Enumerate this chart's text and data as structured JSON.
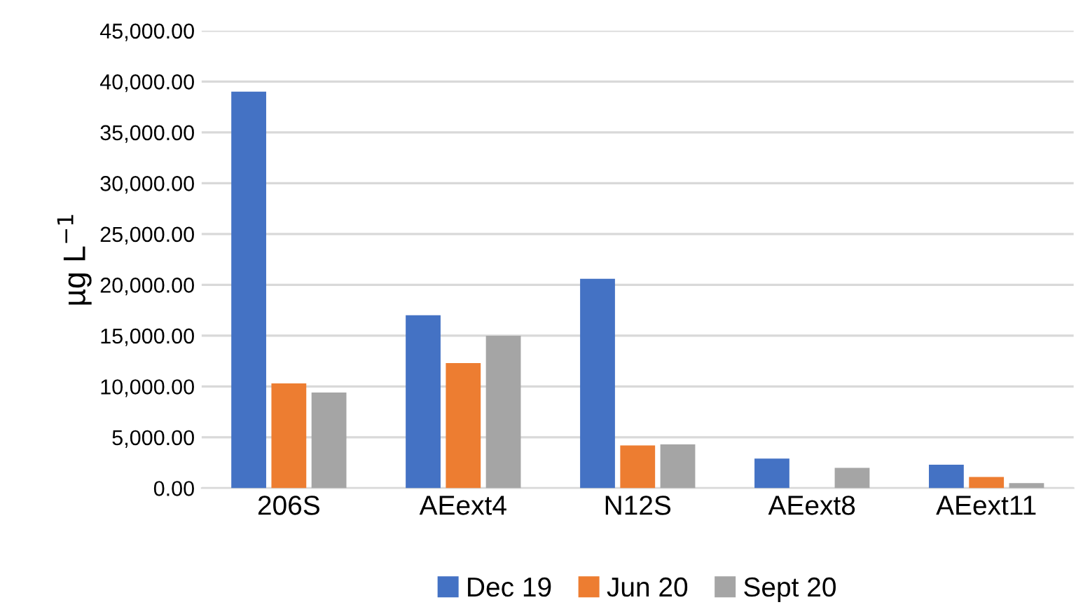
{
  "chart_data": {
    "type": "bar",
    "ylabel": "µg L$^{−1}$",
    "categories": [
      "206S",
      "AEext4",
      "N12S",
      "AEext8",
      "AEext11"
    ],
    "series": [
      {
        "name": "Dec 19",
        "color": "#4472c4",
        "values": [
          39000,
          17000,
          20600,
          2900,
          2300
        ]
      },
      {
        "name": "Jun 20",
        "color": "#ed7d31",
        "values": [
          10300,
          12300,
          4200,
          null,
          1100
        ]
      },
      {
        "name": "Sept 20",
        "color": "#a5a5a5",
        "values": [
          9400,
          15000,
          4300,
          2000,
          500
        ]
      }
    ],
    "ylim": [
      0,
      45000
    ],
    "yticks": [
      {
        "value": 0,
        "label": "0.00"
      },
      {
        "value": 5000,
        "label": "5,000.00"
      },
      {
        "value": 10000,
        "label": "10,000.00"
      },
      {
        "value": 15000,
        "label": "15,000.00"
      },
      {
        "value": 20000,
        "label": "20,000.00"
      },
      {
        "value": 25000,
        "label": "25,000.00"
      },
      {
        "value": 30000,
        "label": "30,000.00"
      },
      {
        "value": 35000,
        "label": "35,000.00"
      },
      {
        "value": 40000,
        "label": "40,000.00"
      },
      {
        "value": 45000,
        "label": "45,000.00"
      }
    ],
    "grid": "y",
    "legend": "bottom"
  }
}
